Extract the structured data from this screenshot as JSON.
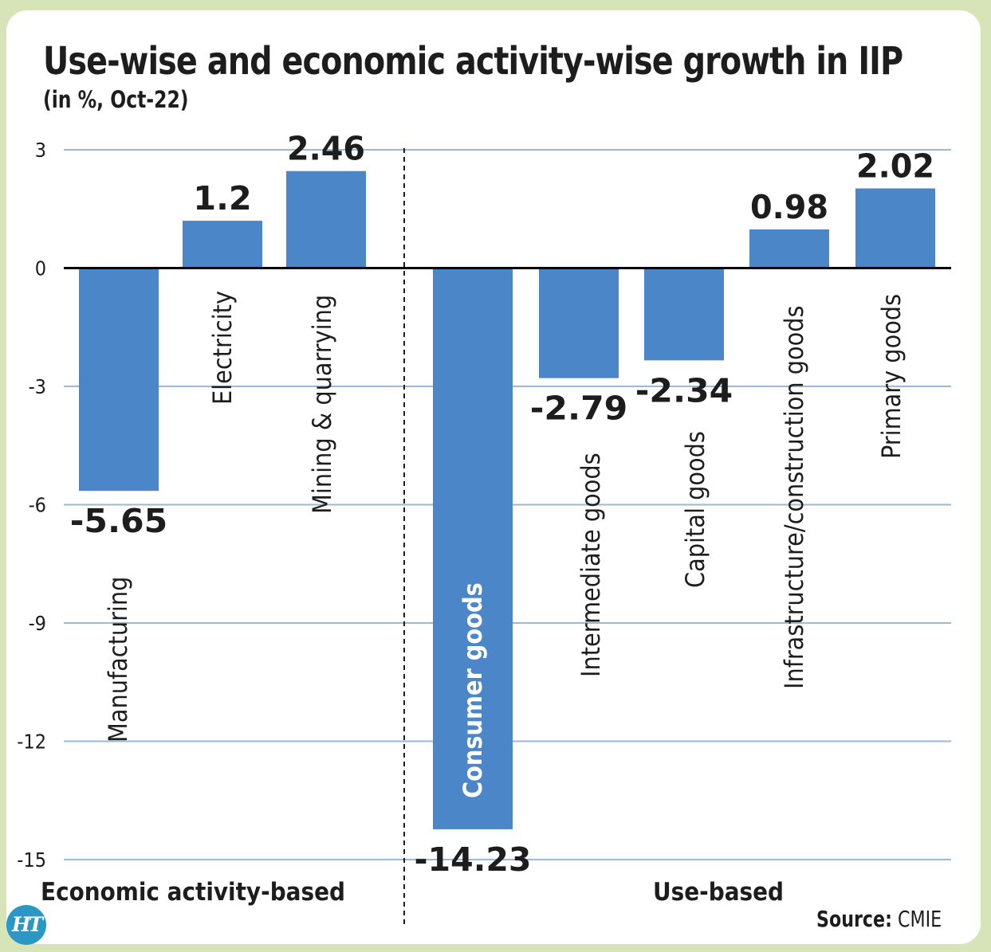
{
  "chart_data": {
    "type": "bar",
    "title": "Use-wise and economic activity-wise growth in IIP",
    "subtitle": "(in %, Oct-22)",
    "categories": [
      "Manufacturing",
      "Electricity",
      "Mining & quarrying",
      "Consumer goods",
      "Intermediate goods",
      "Capital goods",
      "Infrastructure/construction  goods",
      "Primary goods"
    ],
    "values": [
      -5.65,
      1.2,
      2.46,
      -14.23,
      -2.79,
      -2.34,
      0.98,
      2.02
    ],
    "value_labels": [
      "-5.65",
      "1.2",
      "2.46",
      "-14.23",
      "-2.79",
      "-2.34",
      "0.98",
      "2.02"
    ],
    "groups": [
      {
        "name": "Economic activity-based",
        "categories": [
          "Manufacturing",
          "Electricity",
          "Mining & quarrying"
        ]
      },
      {
        "name": "Use-based",
        "categories": [
          "Consumer goods",
          "Intermediate goods",
          "Capital goods",
          "Infrastructure/construction  goods",
          "Primary goods"
        ]
      }
    ],
    "yticks": [
      3,
      0,
      -3,
      -6,
      -9,
      -12,
      -15
    ],
    "ytick_labels": [
      "3",
      "0",
      "-3",
      "-6",
      "-9",
      "-12",
      "-15"
    ],
    "ylim": [
      -15,
      3
    ],
    "xlabel": "",
    "ylabel": "",
    "grid": true,
    "bar_color": "#4a86c8"
  },
  "source": {
    "label": "Source:",
    "value": "CMIE"
  },
  "logo": {
    "text": "HT"
  }
}
